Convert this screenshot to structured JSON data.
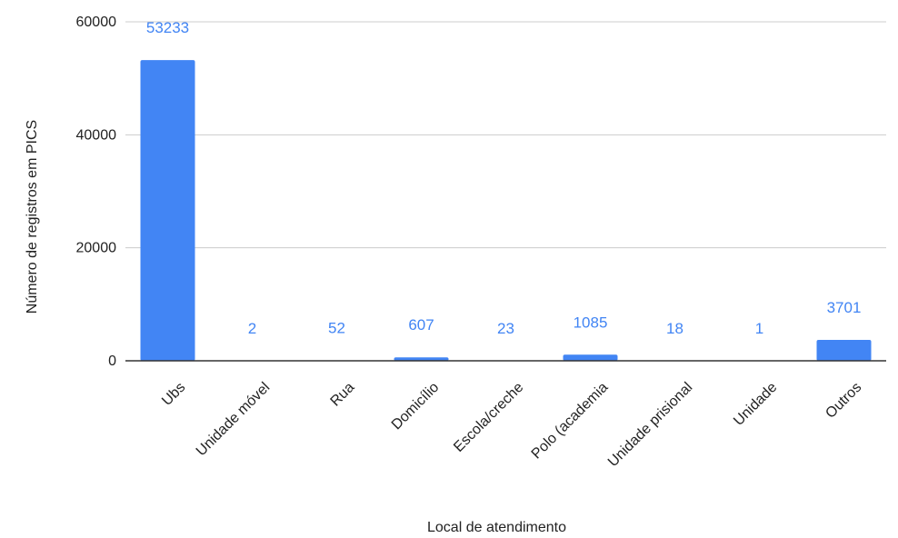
{
  "chart_data": {
    "type": "bar",
    "title": "",
    "xlabel": "Local de atendimento",
    "ylabel": "Número de registros em PICS",
    "categories": [
      "Ubs",
      "Unidade móvel",
      "Rua",
      "Domicílio",
      "Escola/creche",
      "Polo (academia",
      "Unidade prisional",
      "Unidade",
      "Outros"
    ],
    "values": [
      53233,
      2,
      52,
      607,
      23,
      1085,
      18,
      1,
      3701
    ],
    "ylim": [
      0,
      60000
    ],
    "yticks": [
      0,
      20000,
      40000,
      60000
    ],
    "grid": true,
    "legend": "none",
    "bar_color": "#4285f4",
    "data_label_color": "#4285f4",
    "gridline_color": "#cccccc",
    "baseline_color": "#333333"
  }
}
